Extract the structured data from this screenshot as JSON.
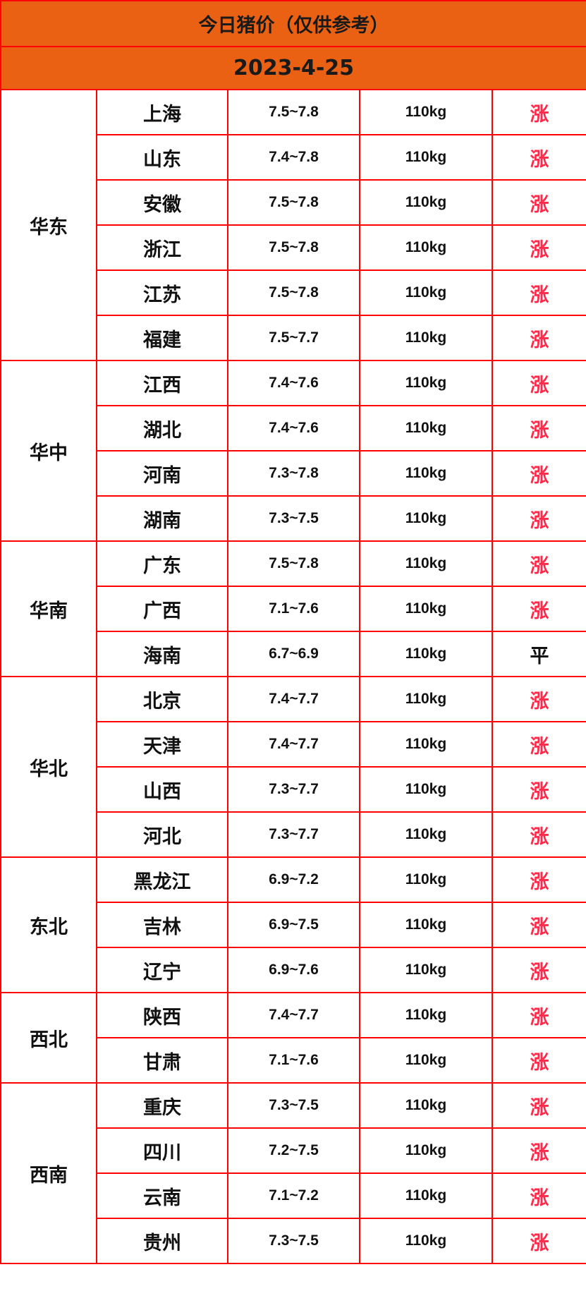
{
  "title": "今日猪价（仅供参考）",
  "date": "2023-4-25",
  "colors": {
    "header_bg": "#ea6114",
    "border": "#ff0000",
    "rise": "#ff2a4a",
    "flat": "#111111"
  },
  "regions": [
    {
      "name": "华东",
      "rows": [
        {
          "province": "上海",
          "price": "7.5~7.8",
          "weight": "110kg",
          "trend": "涨"
        },
        {
          "province": "山东",
          "price": "7.4~7.8",
          "weight": "110kg",
          "trend": "涨"
        },
        {
          "province": "安徽",
          "price": "7.5~7.8",
          "weight": "110kg",
          "trend": "涨"
        },
        {
          "province": "浙江",
          "price": "7.5~7.8",
          "weight": "110kg",
          "trend": "涨"
        },
        {
          "province": "江苏",
          "price": "7.5~7.8",
          "weight": "110kg",
          "trend": "涨"
        },
        {
          "province": "福建",
          "price": "7.5~7.7",
          "weight": "110kg",
          "trend": "涨"
        }
      ]
    },
    {
      "name": "华中",
      "rows": [
        {
          "province": "江西",
          "price": "7.4~7.6",
          "weight": "110kg",
          "trend": "涨"
        },
        {
          "province": "湖北",
          "price": "7.4~7.6",
          "weight": "110kg",
          "trend": "涨"
        },
        {
          "province": "河南",
          "price": "7.3~7.8",
          "weight": "110kg",
          "trend": "涨"
        },
        {
          "province": "湖南",
          "price": "7.3~7.5",
          "weight": "110kg",
          "trend": "涨"
        }
      ]
    },
    {
      "name": "华南",
      "rows": [
        {
          "province": "广东",
          "price": "7.5~7.8",
          "weight": "110kg",
          "trend": "涨"
        },
        {
          "province": "广西",
          "price": "7.1~7.6",
          "weight": "110kg",
          "trend": "涨"
        },
        {
          "province": "海南",
          "price": "6.7~6.9",
          "weight": "110kg",
          "trend": "平"
        }
      ]
    },
    {
      "name": "华北",
      "rows": [
        {
          "province": "北京",
          "price": "7.4~7.7",
          "weight": "110kg",
          "trend": "涨"
        },
        {
          "province": "天津",
          "price": "7.4~7.7",
          "weight": "110kg",
          "trend": "涨"
        },
        {
          "province": "山西",
          "price": "7.3~7.7",
          "weight": "110kg",
          "trend": "涨"
        },
        {
          "province": "河北",
          "price": "7.3~7.7",
          "weight": "110kg",
          "trend": "涨"
        }
      ]
    },
    {
      "name": "东北",
      "rows": [
        {
          "province": "黑龙江",
          "price": "6.9~7.2",
          "weight": "110kg",
          "trend": "涨"
        },
        {
          "province": "吉林",
          "price": "6.9~7.5",
          "weight": "110kg",
          "trend": "涨"
        },
        {
          "province": "辽宁",
          "price": "6.9~7.6",
          "weight": "110kg",
          "trend": "涨"
        }
      ]
    },
    {
      "name": "西北",
      "rows": [
        {
          "province": "陕西",
          "price": "7.4~7.7",
          "weight": "110kg",
          "trend": "涨"
        },
        {
          "province": "甘肃",
          "price": "7.1~7.6",
          "weight": "110kg",
          "trend": "涨"
        }
      ]
    },
    {
      "name": "西南",
      "rows": [
        {
          "province": "重庆",
          "price": "7.3~7.5",
          "weight": "110kg",
          "trend": "涨"
        },
        {
          "province": "四川",
          "price": "7.2~7.5",
          "weight": "110kg",
          "trend": "涨"
        },
        {
          "province": "云南",
          "price": "7.1~7.2",
          "weight": "110kg",
          "trend": "涨"
        },
        {
          "province": "贵州",
          "price": "7.3~7.5",
          "weight": "110kg",
          "trend": "涨"
        }
      ]
    }
  ]
}
